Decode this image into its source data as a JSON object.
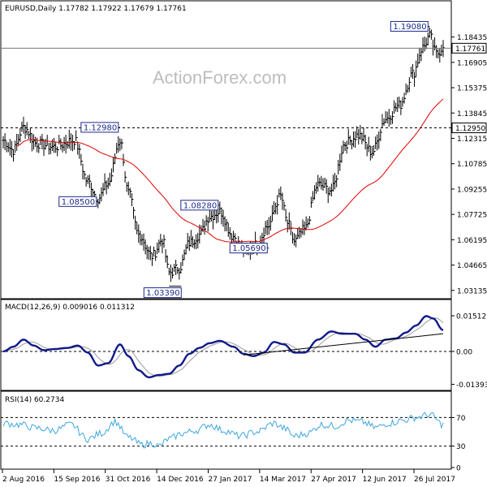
{
  "chart_data": {
    "type": "line",
    "header": "EURUSD,Daily  1.17782 1.17922 1.17679 1.17761",
    "watermark": "ActionForex.com",
    "x_ticks": [
      "2 Aug 2016",
      "15 Sep 2016",
      "31 Oct 2016",
      "14 Dec 2016",
      "27 Jan 2017",
      "14 Mar 2017",
      "27 Apr 2017",
      "12 Jun 2017",
      "26 Jul 2017"
    ],
    "price": {
      "y_ticks": [
        "1.18435",
        "1.16905",
        "1.15375",
        "1.13845",
        "1.12315",
        "1.10785",
        "1.09255",
        "1.07725",
        "1.06195",
        "1.04665",
        "1.03135"
      ],
      "ylim": [
        1.0283,
        1.1969
      ],
      "last_price_label": "1.17761",
      "last_price": 1.17761,
      "level_line_label": "1.12950",
      "level_line": 1.1295,
      "annotations": [
        {
          "text": "1.19080",
          "value": 1.1908,
          "bar": 252
        },
        {
          "text": "1.12980",
          "value": 1.1298,
          "bar": 69
        },
        {
          "text": "1.08500",
          "value": 1.085,
          "bar": 56
        },
        {
          "text": "1.08280",
          "value": 1.0828,
          "bar": 128
        },
        {
          "text": "1.05690",
          "value": 1.0569,
          "bar": 157
        },
        {
          "text": "1.03390",
          "value": 1.0339,
          "bar": 98
        }
      ],
      "anchors": [
        [
          0,
          1.122
        ],
        [
          6,
          1.116
        ],
        [
          12,
          1.13
        ],
        [
          20,
          1.12
        ],
        [
          30,
          1.118
        ],
        [
          42,
          1.122
        ],
        [
          50,
          1.097
        ],
        [
          56,
          1.087
        ],
        [
          62,
          1.096
        ],
        [
          69,
          1.122
        ],
        [
          74,
          1.09
        ],
        [
          80,
          1.065
        ],
        [
          88,
          1.052
        ],
        [
          94,
          1.062
        ],
        [
          98,
          1.042
        ],
        [
          104,
          1.045
        ],
        [
          110,
          1.06
        ],
        [
          116,
          1.065
        ],
        [
          122,
          1.076
        ],
        [
          128,
          1.079
        ],
        [
          136,
          1.064
        ],
        [
          142,
          1.055
        ],
        [
          150,
          1.059
        ],
        [
          156,
          1.07
        ],
        [
          164,
          1.088
        ],
        [
          168,
          1.072
        ],
        [
          172,
          1.061
        ],
        [
          178,
          1.068
        ],
        [
          186,
          1.095
        ],
        [
          194,
          1.092
        ],
        [
          202,
          1.12
        ],
        [
          210,
          1.125
        ],
        [
          218,
          1.115
        ],
        [
          226,
          1.135
        ],
        [
          234,
          1.143
        ],
        [
          242,
          1.162
        ],
        [
          248,
          1.178
        ],
        [
          252,
          1.185
        ],
        [
          256,
          1.174
        ],
        [
          260,
          1.178
        ]
      ]
    },
    "macd": {
      "label": "MACD(12,26,9) 0.009016 0.011312",
      "y_ticks": [
        "0.01512",
        "0.00",
        "-0.013938"
      ],
      "ylim": [
        -0.0155,
        0.0172
      ],
      "anchors": [
        [
          0,
          0.0
        ],
        [
          6,
          0.002
        ],
        [
          12,
          0.005
        ],
        [
          18,
          0.0025
        ],
        [
          24,
          0.0005
        ],
        [
          30,
          0.001
        ],
        [
          38,
          0.0015
        ],
        [
          44,
          0.0025
        ],
        [
          50,
          -0.0005
        ],
        [
          56,
          -0.006
        ],
        [
          62,
          -0.005
        ],
        [
          69,
          0.003
        ],
        [
          74,
          -0.002
        ],
        [
          80,
          -0.008
        ],
        [
          86,
          -0.011
        ],
        [
          92,
          -0.01
        ],
        [
          98,
          -0.0095
        ],
        [
          104,
          -0.006
        ],
        [
          110,
          -0.001
        ],
        [
          116,
          0.0015
        ],
        [
          122,
          0.0035
        ],
        [
          128,
          0.0045
        ],
        [
          136,
          0.002
        ],
        [
          142,
          -0.001
        ],
        [
          148,
          -0.002
        ],
        [
          154,
          -0.0005
        ],
        [
          160,
          0.004
        ],
        [
          166,
          0.003
        ],
        [
          172,
          -0.0005
        ],
        [
          178,
          -0.0005
        ],
        [
          186,
          0.005
        ],
        [
          194,
          0.0085
        ],
        [
          200,
          0.0075
        ],
        [
          208,
          0.0075
        ],
        [
          214,
          0.005
        ],
        [
          220,
          0.002
        ],
        [
          226,
          0.005
        ],
        [
          232,
          0.0055
        ],
        [
          238,
          0.008
        ],
        [
          244,
          0.011
        ],
        [
          250,
          0.015
        ],
        [
          254,
          0.014
        ],
        [
          260,
          0.009
        ]
      ],
      "trendline": [
        [
          142,
          -0.0015
        ],
        [
          260,
          0.0075
        ]
      ]
    },
    "rsi": {
      "label": "RSI(14) 60.2734",
      "y_ticks": [
        "70",
        "30",
        "0"
      ],
      "ylim": [
        0,
        100
      ],
      "levels": [
        70,
        30
      ],
      "anchors": [
        [
          0,
          62
        ],
        [
          10,
          60
        ],
        [
          20,
          55
        ],
        [
          30,
          52
        ],
        [
          40,
          60
        ],
        [
          50,
          40
        ],
        [
          58,
          48
        ],
        [
          66,
          64
        ],
        [
          74,
          42
        ],
        [
          82,
          32
        ],
        [
          88,
          34
        ],
        [
          92,
          30
        ],
        [
          98,
          40
        ],
        [
          106,
          48
        ],
        [
          114,
          52
        ],
        [
          122,
          60
        ],
        [
          130,
          52
        ],
        [
          140,
          44
        ],
        [
          150,
          50
        ],
        [
          160,
          62
        ],
        [
          166,
          55
        ],
        [
          172,
          44
        ],
        [
          180,
          48
        ],
        [
          188,
          60
        ],
        [
          196,
          58
        ],
        [
          204,
          66
        ],
        [
          212,
          64
        ],
        [
          220,
          56
        ],
        [
          228,
          62
        ],
        [
          236,
          66
        ],
        [
          244,
          70
        ],
        [
          252,
          74
        ],
        [
          260,
          60
        ]
      ]
    }
  }
}
